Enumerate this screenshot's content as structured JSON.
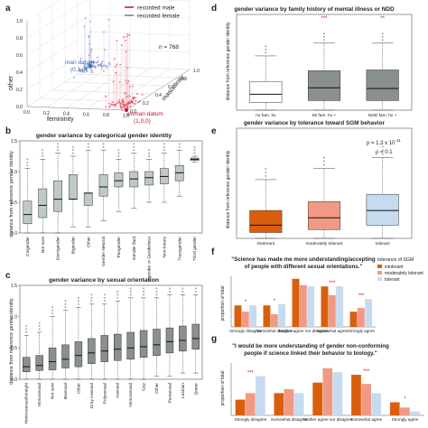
{
  "panel_letters": [
    "a",
    "b",
    "c",
    "d",
    "e",
    "f",
    "g"
  ],
  "chart_data": [
    {
      "panel": "a",
      "type": "scatter",
      "title": "",
      "legend": [
        "recorded male",
        "recorded female"
      ],
      "legend_colors": [
        "#c8102e",
        "#6a7fc1"
      ],
      "n_label": "n = 768",
      "axes": {
        "x": "femininity",
        "y": "masculinity",
        "z": "other"
      },
      "x_ticks": [
        "0.0",
        "0.2",
        "0.4",
        "0.6",
        "0.8",
        "1.0"
      ],
      "y_ticks": [
        "0.0",
        "0.2",
        "0.4",
        "0.6",
        "0.8",
        "1.0"
      ],
      "z_ticks": [
        "0.0",
        "0.2",
        "0.4",
        "0.6",
        "0.8",
        "1.0"
      ],
      "annotations": [
        {
          "text": "man datum",
          "sub": "(0,1,0)",
          "color": "#3b6bb0"
        },
        {
          "text": "woman datum",
          "sub": "(1,0,0)",
          "color": "#c8102e"
        }
      ]
    },
    {
      "panel": "b",
      "type": "box",
      "title": "gender variance by categorical gender identity",
      "ylabel": "distance from reference gender identity",
      "ylim": [
        0,
        1.5
      ],
      "y_ticks": [
        "0.0",
        "0.5",
        "1.0",
        "1.5"
      ],
      "categories": [
        "Cisgender",
        "Not sure",
        "Demigender",
        "Bigender",
        "Other",
        "Gender Neutral",
        "Pangender",
        "Gender fluid",
        "Agender or Genderless",
        "Non-binary",
        "Transgender",
        "Third gender"
      ],
      "stats": [
        {
          "q1": 0.15,
          "med": 0.3,
          "q3": 0.52,
          "lo": 0,
          "hi": 1.05
        },
        {
          "q1": 0.25,
          "med": 0.45,
          "q3": 0.72,
          "lo": 0,
          "hi": 1.2
        },
        {
          "q1": 0.35,
          "med": 0.55,
          "q3": 0.85,
          "lo": 0,
          "hi": 1.3
        },
        {
          "q1": 0.55,
          "med": 0.55,
          "q3": 0.95,
          "lo": 0.1,
          "hi": 1.25
        },
        {
          "q1": 0.45,
          "med": 0.65,
          "q3": 0.65,
          "lo": 0.1,
          "hi": 1.35
        },
        {
          "q1": 0.6,
          "med": 0.75,
          "q3": 0.95,
          "lo": 0.2,
          "hi": 1.35
        },
        {
          "q1": 0.75,
          "med": 0.85,
          "q3": 0.98,
          "lo": 0.35,
          "hi": 1.2
        },
        {
          "q1": 0.75,
          "med": 0.88,
          "q3": 1.0,
          "lo": 0.4,
          "hi": 1.3
        },
        {
          "q1": 0.78,
          "med": 0.9,
          "q3": 1.0,
          "lo": 0.5,
          "hi": 1.2
        },
        {
          "q1": 0.8,
          "med": 0.92,
          "q3": 1.05,
          "lo": 0.5,
          "hi": 1.3
        },
        {
          "q1": 0.85,
          "med": 0.98,
          "q3": 1.1,
          "lo": 0.6,
          "hi": 1.35
        },
        {
          "q1": 1.18,
          "med": 1.2,
          "q3": 1.22,
          "lo": 1.15,
          "hi": 1.25
        }
      ],
      "fill": "#bfc9c9"
    },
    {
      "panel": "c",
      "type": "box",
      "title": "gender variance by sexual orientation",
      "ylabel": "distance from reference gender identity",
      "ylim": [
        0,
        1.5
      ],
      "y_ticks": [
        "0.0",
        "0.5",
        "1.0",
        "1.5"
      ],
      "categories": [
        "Heterosexual/straight",
        "Monosexual",
        "Not sure",
        "Bisexual",
        "Other",
        "Gray Asexual",
        "Polysexual",
        "Asexual",
        "Homosexual",
        "Gay",
        "Other",
        "Pansexual",
        "Lesbian",
        "Queer"
      ],
      "stats": [
        {
          "q1": 0.12,
          "med": 0.2,
          "q3": 0.35,
          "lo": 0,
          "hi": 0.7
        },
        {
          "q1": 0.14,
          "med": 0.22,
          "q3": 0.38,
          "lo": 0,
          "hi": 0.75
        },
        {
          "q1": 0.15,
          "med": 0.28,
          "q3": 0.5,
          "lo": 0,
          "hi": 1.0
        },
        {
          "q1": 0.18,
          "med": 0.32,
          "q3": 0.55,
          "lo": 0,
          "hi": 1.1
        },
        {
          "q1": 0.2,
          "med": 0.38,
          "q3": 0.6,
          "lo": 0,
          "hi": 1.15
        },
        {
          "q1": 0.25,
          "med": 0.42,
          "q3": 0.65,
          "lo": 0,
          "hi": 1.2
        },
        {
          "q1": 0.28,
          "med": 0.45,
          "q3": 0.7,
          "lo": 0,
          "hi": 1.2
        },
        {
          "q1": 0.3,
          "med": 0.48,
          "q3": 0.72,
          "lo": 0,
          "hi": 1.25
        },
        {
          "q1": 0.32,
          "med": 0.5,
          "q3": 0.75,
          "lo": 0,
          "hi": 1.3
        },
        {
          "q1": 0.35,
          "med": 0.52,
          "q3": 0.78,
          "lo": 0,
          "hi": 1.3
        },
        {
          "q1": 0.38,
          "med": 0.55,
          "q3": 0.8,
          "lo": 0.05,
          "hi": 1.3
        },
        {
          "q1": 0.42,
          "med": 0.6,
          "q3": 0.82,
          "lo": 0.05,
          "hi": 1.35
        },
        {
          "q1": 0.45,
          "med": 0.62,
          "q3": 0.85,
          "lo": 0.1,
          "hi": 1.35
        },
        {
          "q1": 0.48,
          "med": 0.65,
          "q3": 0.88,
          "lo": 0.1,
          "hi": 1.35
        }
      ],
      "fill": "#8a8f8f"
    },
    {
      "panel": "d",
      "type": "box",
      "title": "gender variance by family history of mental illness or NDD",
      "ylabel": "distance from reference gender identity",
      "ylim": [
        0,
        1.5
      ],
      "categories": [
        "no fam. hx",
        "MI fam. hx +",
        "NDD fam. hx +"
      ],
      "stars": [
        "",
        "***",
        "**"
      ],
      "stats": [
        {
          "q1": 0.12,
          "med": 0.25,
          "q3": 0.45,
          "lo": 0,
          "hi": 0.85
        },
        {
          "q1": 0.15,
          "med": 0.35,
          "q3": 0.62,
          "lo": 0,
          "hi": 1.05
        },
        {
          "q1": 0.15,
          "med": 0.34,
          "q3": 0.63,
          "lo": 0,
          "hi": 1.05
        }
      ],
      "fills": [
        "#ffffff",
        "#8a8f8f",
        "#8a8f8f"
      ]
    },
    {
      "panel": "e",
      "type": "box",
      "title": "gender variance by tolerance toward SGM behavior",
      "ylabel": "distance from reference gender identity",
      "ylim": [
        0,
        1.5
      ],
      "annotation": "p = 1.3 x 10",
      "annotation_exp": "-11",
      "annotation2": "ρ = 0.1",
      "categories": [
        "intolerant",
        "moderately tolerant",
        "tolerant"
      ],
      "stats": [
        {
          "q1": 0.08,
          "med": 0.18,
          "q3": 0.38,
          "lo": 0,
          "hi": 0.8
        },
        {
          "q1": 0.12,
          "med": 0.28,
          "q3": 0.5,
          "lo": 0,
          "hi": 0.95
        },
        {
          "q1": 0.18,
          "med": 0.38,
          "q3": 0.6,
          "lo": 0,
          "hi": 1.1
        }
      ],
      "fills": [
        "#d95f0e",
        "#f09a86",
        "#c6dbef"
      ]
    },
    {
      "panel": "f",
      "type": "bar",
      "title": "\"Science has made me more understanding/accepting of people with different sexual orientations.\"",
      "ylabel": "proportion of total",
      "categories": [
        "Strongly disagree",
        "Somewhat disagree",
        "Neither agree nor disagree",
        "Somewhat agree",
        "Strongly agree"
      ],
      "legend_title": "tolerance of SGM",
      "series": [
        {
          "name": "intolerant",
          "color": "#d95f0e",
          "values": [
            0.17,
            0.17,
            0.38,
            0.32,
            0.12
          ]
        },
        {
          "name": "moderately tolerant",
          "color": "#f09a86",
          "values": [
            0.12,
            0.1,
            0.33,
            0.25,
            0.15
          ]
        },
        {
          "name": "tolerant",
          "color": "#c6dbef",
          "values": [
            0.17,
            0.18,
            0.32,
            0.32,
            0.22
          ]
        }
      ],
      "stars": [
        "*",
        "*",
        "",
        "***",
        "***"
      ],
      "ylim": [
        0,
        0.4
      ]
    },
    {
      "panel": "g",
      "type": "bar",
      "title": "\"I would be more understanding of gender non-conforming people if science linked their behavior to biology.\"",
      "ylabel": "proportion of total",
      "categories": [
        "Strongly disagree",
        "Somewhat disagree",
        "Neither agree nor disagree",
        "Somewhat agree",
        "Strongly agree"
      ],
      "series": [
        {
          "name": "intolerant",
          "color": "#d95f0e",
          "values": [
            0.12,
            0.17,
            0.25,
            0.31,
            0.1
          ]
        },
        {
          "name": "moderately tolerant",
          "color": "#f09a86",
          "values": [
            0.17,
            0.2,
            0.36,
            0.24,
            0.06
          ]
        },
        {
          "name": "tolerant",
          "color": "#c6dbef",
          "values": [
            0.3,
            0.17,
            0.33,
            0.17,
            0.03
          ]
        }
      ],
      "stars": [
        "***",
        "",
        "",
        "***",
        "*"
      ],
      "ylim": [
        0,
        0.4
      ]
    }
  ]
}
